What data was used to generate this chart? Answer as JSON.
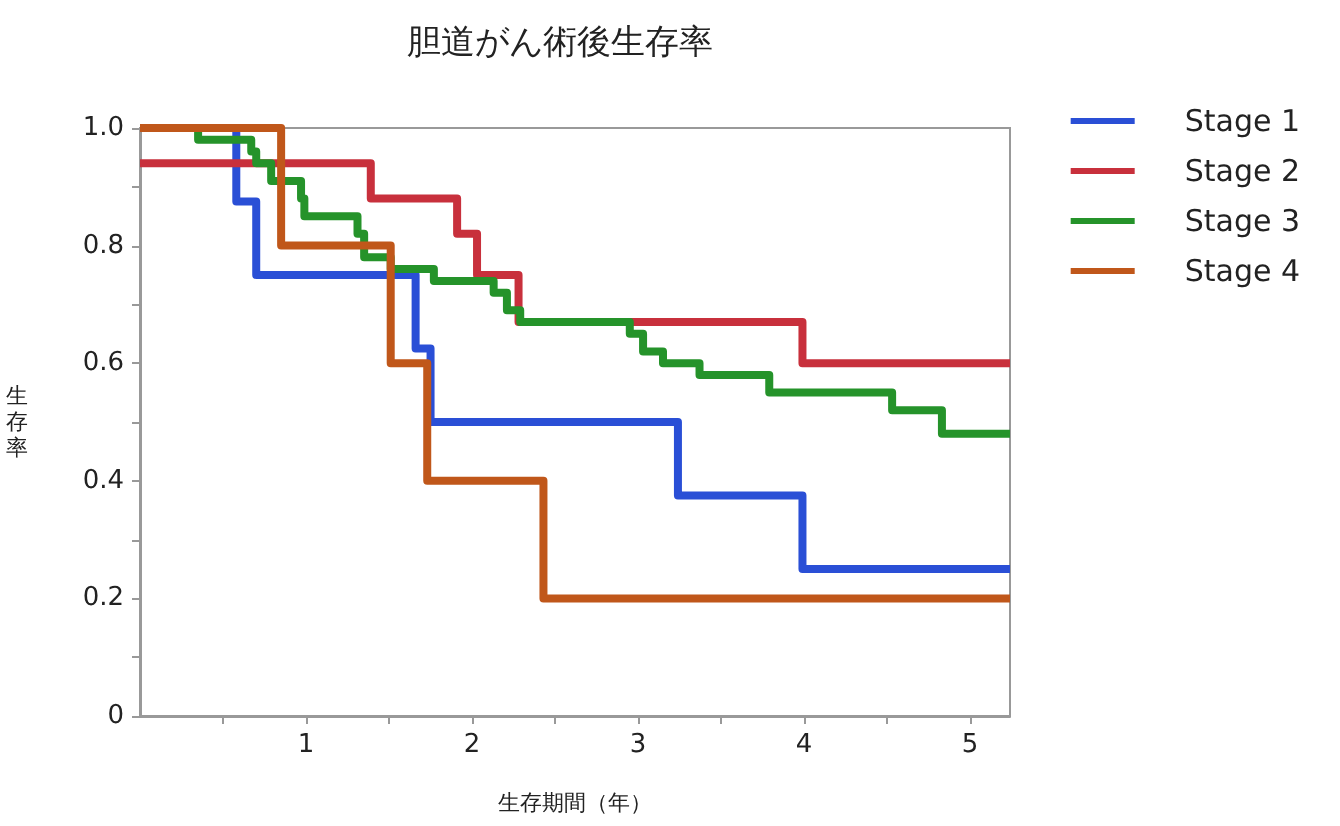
{
  "chart_data": {
    "type": "step",
    "title": "胆道がん術後生存率",
    "xlabel": "生存期間（年）",
    "ylabel": "生存率",
    "xlim": [
      0,
      5.24
    ],
    "ylim": [
      0,
      1
    ],
    "xticks": [
      {
        "value": 0.5,
        "label": null
      },
      1,
      {
        "value": 1.5,
        "label": null
      },
      2,
      {
        "value": 2.5,
        "label": null
      },
      3,
      {
        "value": 3.5,
        "label": null
      },
      4,
      {
        "value": 4.5,
        "label": null
      },
      5
    ],
    "yticks": [
      0,
      {
        "value": 0.1,
        "label": null
      },
      0.2,
      {
        "value": 0.3,
        "label": null
      },
      0.4,
      {
        "value": 0.5,
        "label": null
      },
      0.6,
      {
        "value": 0.7,
        "label": null
      },
      0.8,
      {
        "value": 0.9,
        "label": null
      },
      {
        "value": 1,
        "label": "1.0"
      }
    ],
    "grid": false,
    "legend": "top right",
    "marker": "none",
    "line_style": "solid",
    "series": [
      {
        "name": "Stage 1",
        "color": "#2a4fd6",
        "x": [
          0,
          0.58,
          0.7,
          1.66,
          1.75,
          3.24,
          3.99,
          5.24
        ],
        "values": [
          1,
          0.875,
          0.75,
          0.625,
          0.5,
          0.375,
          0.25,
          0.25
        ]
      },
      {
        "name": "Stage 2",
        "color": "#c8303c",
        "x": [
          0,
          1.39,
          1.91,
          2.03,
          2.28,
          3.99,
          5.24
        ],
        "values": [
          0.94,
          0.88,
          0.82,
          0.75,
          0.67,
          0.6,
          0.6
        ]
      },
      {
        "name": "Stage 3",
        "color": "#25932a",
        "x": [
          0,
          0.35,
          0.67,
          0.7,
          0.79,
          0.97,
          0.99,
          1.31,
          1.35,
          1.51,
          1.77,
          2.13,
          2.21,
          2.29,
          2.95,
          3.03,
          3.15,
          3.37,
          3.79,
          4.53,
          4.83,
          5.24
        ],
        "values": [
          1,
          0.98,
          0.96,
          0.94,
          0.91,
          0.88,
          0.85,
          0.82,
          0.78,
          0.76,
          0.74,
          0.72,
          0.69,
          0.67,
          0.65,
          0.62,
          0.6,
          0.58,
          0.55,
          0.52,
          0.48,
          0.48
        ]
      },
      {
        "name": "Stage 4",
        "color": "#c0571a",
        "x": [
          0,
          0.85,
          1.51,
          1.73,
          2.43,
          5.24
        ],
        "values": [
          1,
          0.8,
          0.6,
          0.4,
          0.2,
          0.2
        ]
      }
    ]
  }
}
